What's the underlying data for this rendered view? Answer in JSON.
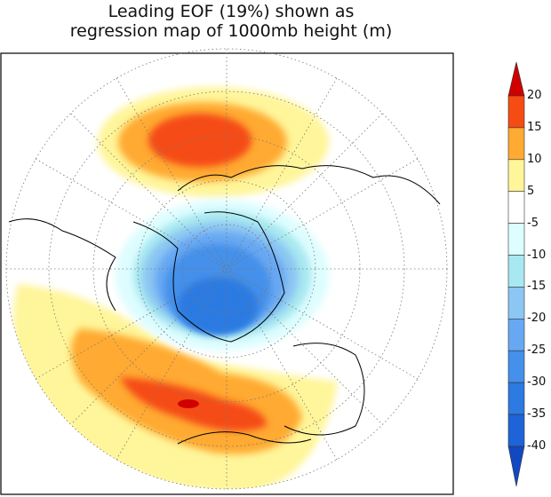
{
  "title": {
    "line1": "Leading EOF (19%) shown as",
    "line2": "regression map of 1000mb height (m)"
  },
  "map": {
    "projection": "north polar stereographic",
    "field": "1000mb height regression",
    "units": "m"
  },
  "colorbar": {
    "labels": [
      "20",
      "15",
      "10",
      "5",
      "-5",
      "-10",
      "-15",
      "-20",
      "-25",
      "-30",
      "-35",
      "-40"
    ],
    "bins": [
      {
        "range": ">20",
        "color": "#d00000"
      },
      {
        "range": "15-20",
        "color": "#f54c14"
      },
      {
        "range": "10-15",
        "color": "#ffaa33"
      },
      {
        "range": "5-10",
        "color": "#fff59a"
      },
      {
        "range": "-5-5",
        "color": "#ffffff"
      },
      {
        "range": "-10--5",
        "color": "#ddfdff"
      },
      {
        "range": "-15--10",
        "color": "#a8e8f0"
      },
      {
        "range": "-20--15",
        "color": "#8cc6f2"
      },
      {
        "range": "-25--20",
        "color": "#68a8f2"
      },
      {
        "range": "-30--25",
        "color": "#4490ea"
      },
      {
        "range": "-35--30",
        "color": "#2c7ae2"
      },
      {
        "range": "-40--35",
        "color": "#1e64d8"
      },
      {
        "range": "<-40",
        "color": "#1248c0"
      }
    ]
  }
}
